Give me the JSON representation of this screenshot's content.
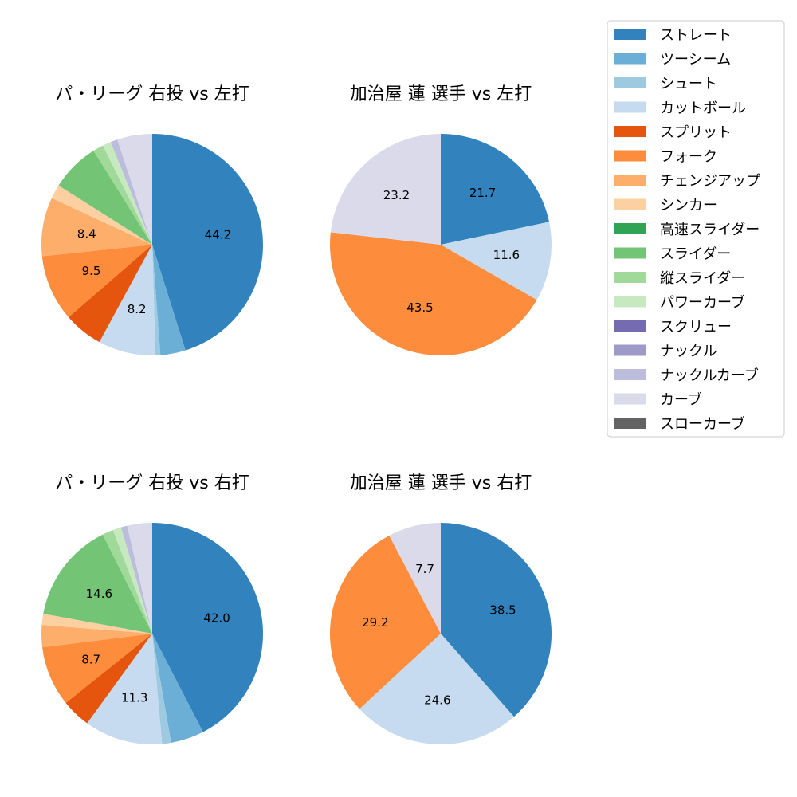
{
  "legend": {
    "entries": [
      {
        "label": "ストレート",
        "color": "#3182bd"
      },
      {
        "label": "ツーシーム",
        "color": "#6baed6"
      },
      {
        "label": "シュート",
        "color": "#9ecae1"
      },
      {
        "label": "カットボール",
        "color": "#c6dbef"
      },
      {
        "label": "スプリット",
        "color": "#e6550d"
      },
      {
        "label": "フォーク",
        "color": "#fd8d3c"
      },
      {
        "label": "チェンジアップ",
        "color": "#fdae6b"
      },
      {
        "label": "シンカー",
        "color": "#fdd0a2"
      },
      {
        "label": "高速スライダー",
        "color": "#31a354"
      },
      {
        "label": "スライダー",
        "color": "#74c476"
      },
      {
        "label": "縦スライダー",
        "color": "#a1d99b"
      },
      {
        "label": "パワーカーブ",
        "color": "#c7e9c0"
      },
      {
        "label": "スクリュー",
        "color": "#756bb1"
      },
      {
        "label": "ナックル",
        "color": "#9e9ac8"
      },
      {
        "label": "ナックルカーブ",
        "color": "#bcbddc"
      },
      {
        "label": "カーブ",
        "color": "#dadaeb"
      },
      {
        "label": "スローカーブ",
        "color": "#636363"
      }
    ]
  },
  "chart_data": [
    {
      "type": "pie",
      "title": "パ・リーグ 右投 vs 左打",
      "slices": [
        {
          "label": "ストレート",
          "value": 44.2,
          "color": "#3182bd",
          "display": "44.2"
        },
        {
          "label": "ツーシーム",
          "value": 3.6,
          "color": "#6baed6",
          "display": ""
        },
        {
          "label": "シュート",
          "value": 0.7,
          "color": "#9ecae1",
          "display": ""
        },
        {
          "label": "カットボール",
          "value": 8.2,
          "color": "#c6dbef",
          "display": "8.2"
        },
        {
          "label": "スプリット",
          "value": 5.6,
          "color": "#e6550d",
          "display": ""
        },
        {
          "label": "フォーク",
          "value": 9.5,
          "color": "#fd8d3c",
          "display": "9.5"
        },
        {
          "label": "チェンジアップ",
          "value": 8.4,
          "color": "#fdae6b",
          "display": "8.4"
        },
        {
          "label": "シンカー",
          "value": 2.0,
          "color": "#fdd0a2",
          "display": ""
        },
        {
          "label": "スライダー",
          "value": 7.0,
          "color": "#74c476",
          "display": ""
        },
        {
          "label": "縦スライダー",
          "value": 1.5,
          "color": "#a1d99b",
          "display": ""
        },
        {
          "label": "パワーカーブ",
          "value": 1.2,
          "color": "#c7e9c0",
          "display": ""
        },
        {
          "label": "ナックルカーブ",
          "value": 1.0,
          "color": "#bcbddc",
          "display": ""
        },
        {
          "label": "カーブ",
          "value": 5.0,
          "color": "#dadaeb",
          "display": ""
        }
      ]
    },
    {
      "type": "pie",
      "title": "加治屋 蓮 選手 vs 左打",
      "slices": [
        {
          "label": "ストレート",
          "value": 21.7,
          "color": "#3182bd",
          "display": "21.7"
        },
        {
          "label": "カットボール",
          "value": 11.6,
          "color": "#c6dbef",
          "display": "11.6"
        },
        {
          "label": "フォーク",
          "value": 43.5,
          "color": "#fd8d3c",
          "display": "43.5"
        },
        {
          "label": "カーブ",
          "value": 23.2,
          "color": "#dadaeb",
          "display": "23.2"
        }
      ]
    },
    {
      "type": "pie",
      "title": "パ・リーグ 右投 vs 右打",
      "slices": [
        {
          "label": "ストレート",
          "value": 42.0,
          "color": "#3182bd",
          "display": "42.0"
        },
        {
          "label": "ツーシーム",
          "value": 4.8,
          "color": "#6baed6",
          "display": ""
        },
        {
          "label": "シュート",
          "value": 1.3,
          "color": "#9ecae1",
          "display": ""
        },
        {
          "label": "カットボール",
          "value": 11.3,
          "color": "#c6dbef",
          "display": "11.3"
        },
        {
          "label": "スプリット",
          "value": 4.2,
          "color": "#e6550d",
          "display": ""
        },
        {
          "label": "フォーク",
          "value": 8.7,
          "color": "#fd8d3c",
          "display": "8.7"
        },
        {
          "label": "チェンジアップ",
          "value": 3.2,
          "color": "#fdae6b",
          "display": ""
        },
        {
          "label": "シンカー",
          "value": 1.6,
          "color": "#fdd0a2",
          "display": ""
        },
        {
          "label": "スライダー",
          "value": 14.6,
          "color": "#74c476",
          "display": "14.6"
        },
        {
          "label": "縦スライダー",
          "value": 1.6,
          "color": "#a1d99b",
          "display": ""
        },
        {
          "label": "パワーカーブ",
          "value": 1.2,
          "color": "#c7e9c0",
          "display": ""
        },
        {
          "label": "ナックルカーブ",
          "value": 0.9,
          "color": "#bcbddc",
          "display": ""
        },
        {
          "label": "カーブ",
          "value": 3.6,
          "color": "#dadaeb",
          "display": ""
        }
      ]
    },
    {
      "type": "pie",
      "title": "加治屋 蓮 選手 vs 右打",
      "slices": [
        {
          "label": "ストレート",
          "value": 38.5,
          "color": "#3182bd",
          "display": "38.5"
        },
        {
          "label": "カットボール",
          "value": 24.6,
          "color": "#c6dbef",
          "display": "24.6"
        },
        {
          "label": "フォーク",
          "value": 29.2,
          "color": "#fd8d3c",
          "display": "29.2"
        },
        {
          "label": "カーブ",
          "value": 7.7,
          "color": "#dadaeb",
          "display": "7.7"
        }
      ]
    }
  ]
}
